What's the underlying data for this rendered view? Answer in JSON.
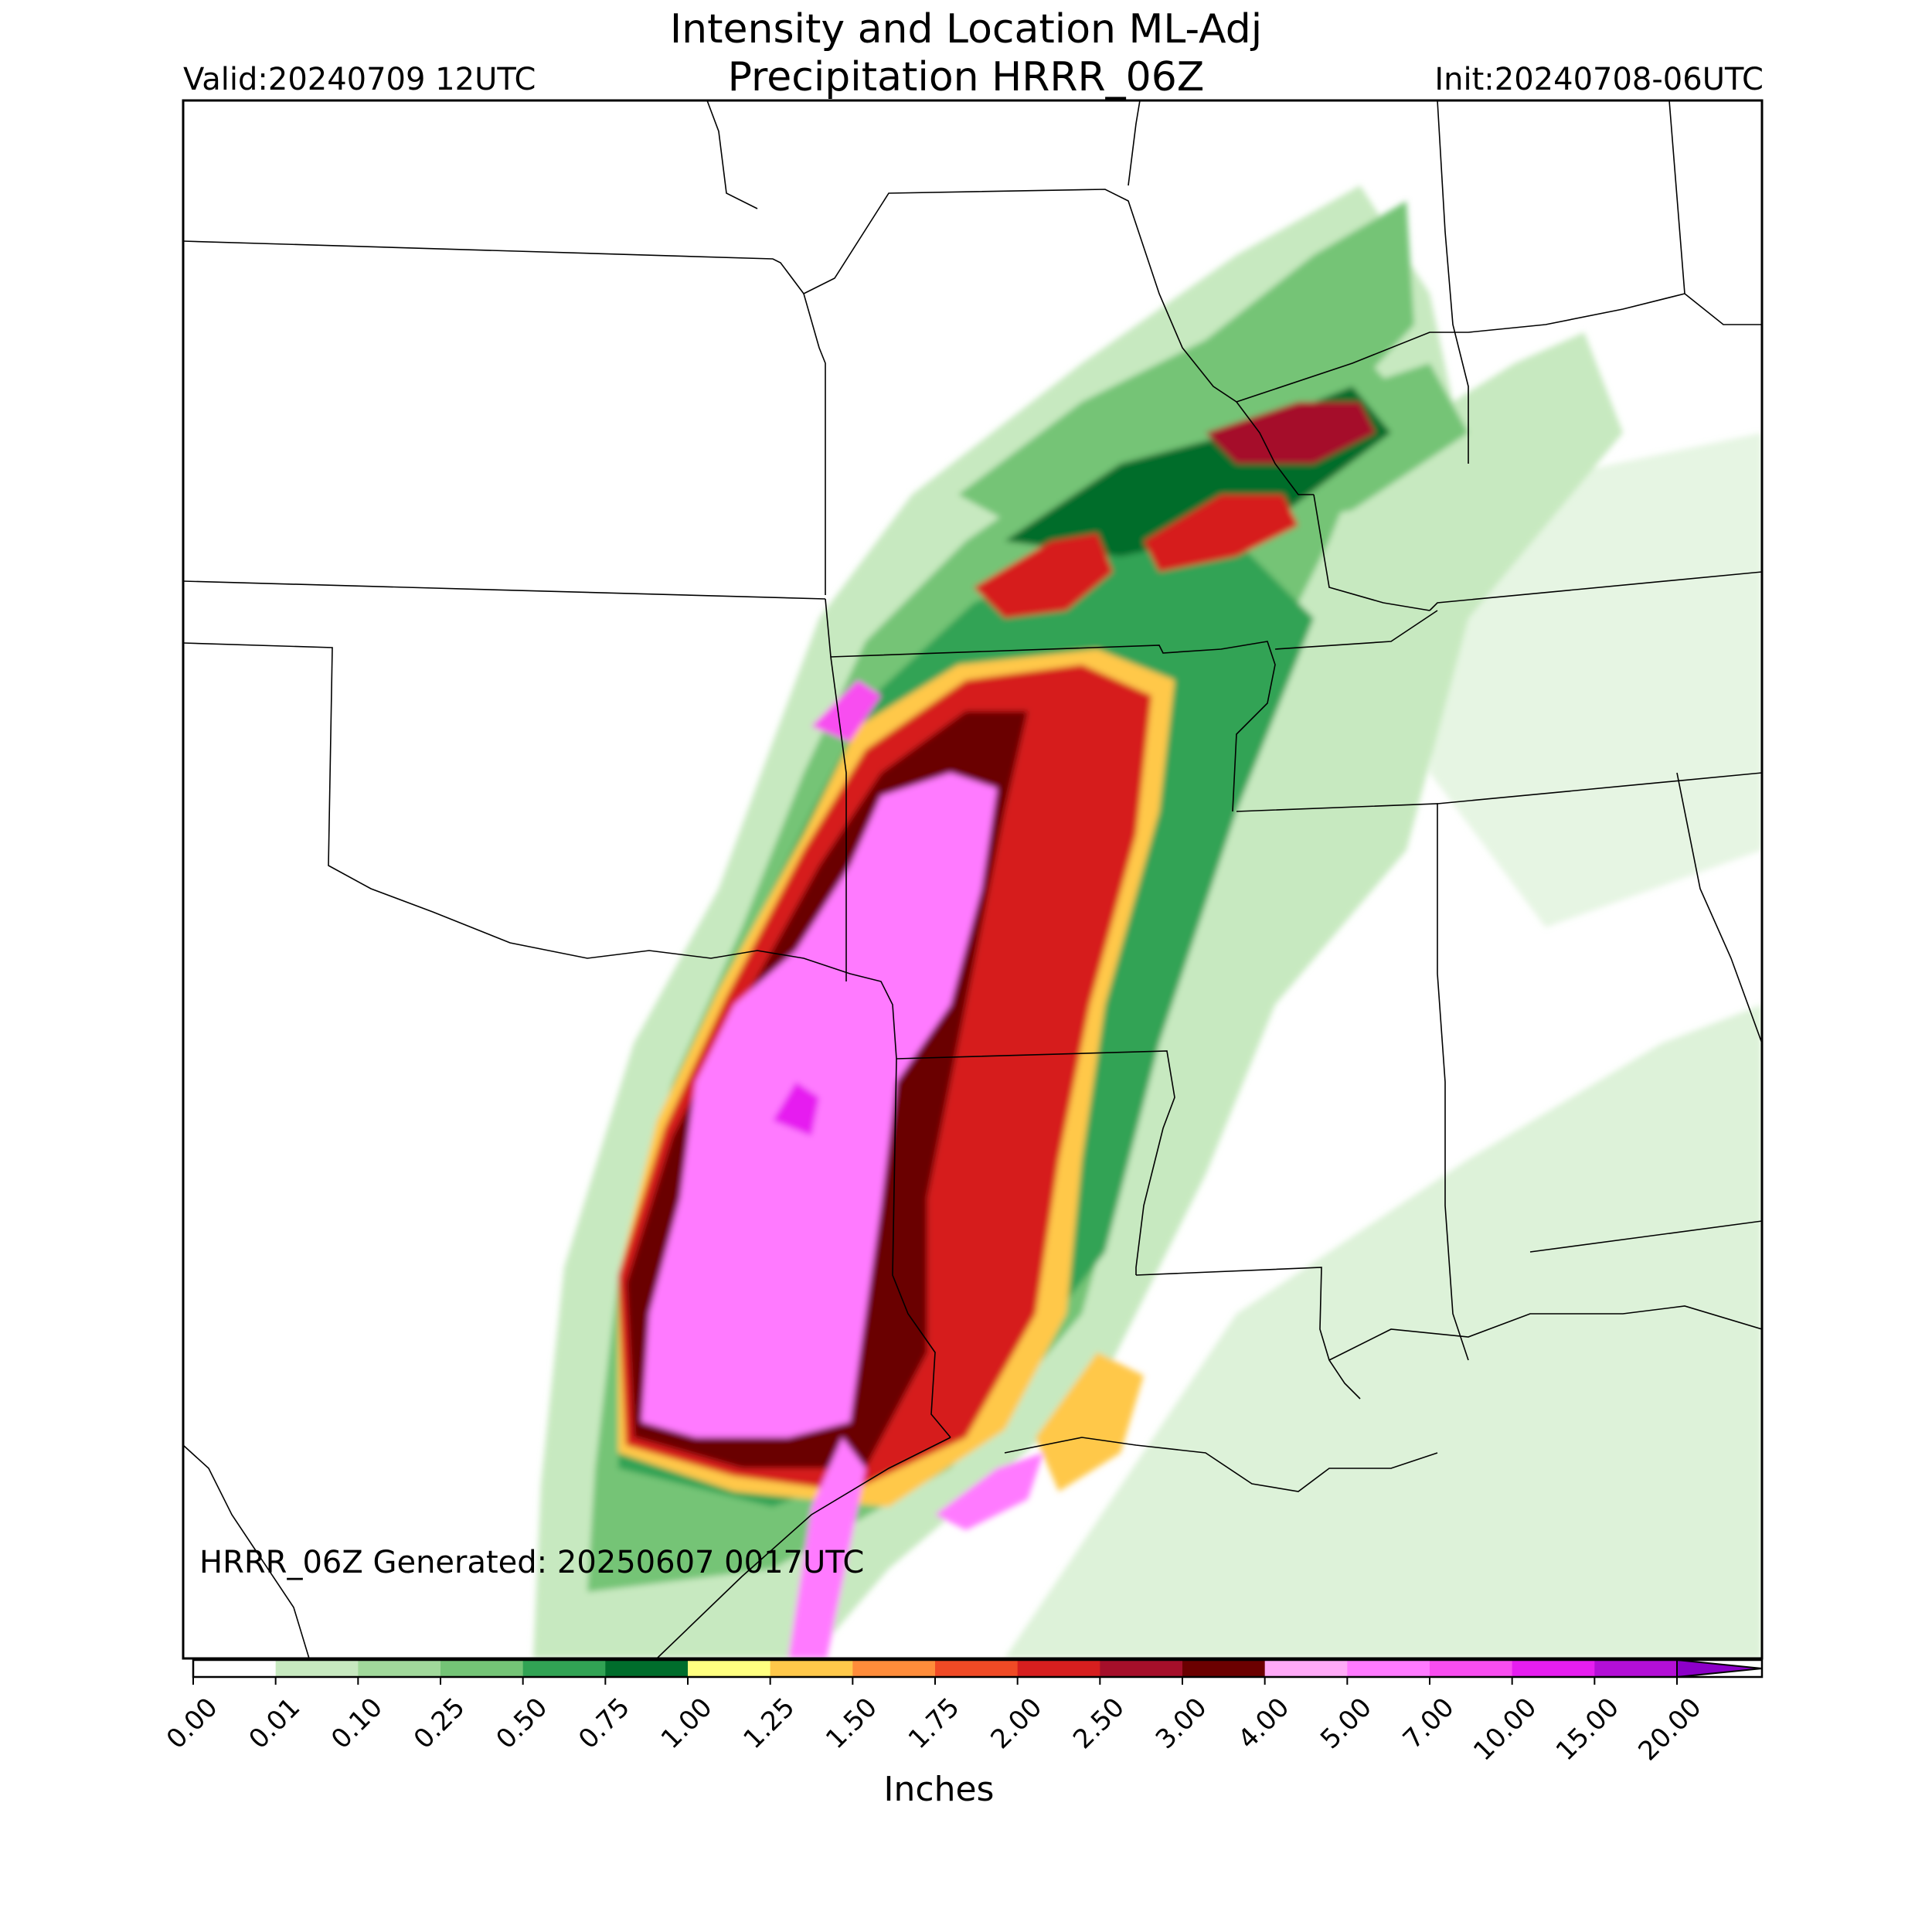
{
  "title": {
    "line1": "Intensity and Location ML-Adj",
    "line2": "Precipitation HRRR_06Z"
  },
  "valid_text": "Valid:20240709 12UTC",
  "init_text": "Init:20240708-06UTC",
  "generated_text": "HRRR_06Z Generated: 20250607 0017UTC",
  "colorbar": {
    "units": "Inches",
    "extend": "max",
    "ticks": [
      "0.00",
      "0.01",
      "0.10",
      "0.25",
      "0.50",
      "0.75",
      "1.00",
      "1.25",
      "1.50",
      "1.75",
      "2.00",
      "2.50",
      "3.00",
      "4.00",
      "5.00",
      "7.00",
      "10.00",
      "15.00",
      "20.00"
    ],
    "colors": [
      "#ffffff",
      "#c7e9c0",
      "#a1d99b",
      "#74c476",
      "#31a354",
      "#006d2c",
      "#ffff80",
      "#ffc84a",
      "#ff8c3a",
      "#f04a25",
      "#d61f1f",
      "#a50f2a",
      "#6b0000",
      "#ffaaf7",
      "#ff7aff",
      "#f84df0",
      "#e61ef0",
      "#b30fd6",
      "#8c00c8"
    ]
  },
  "map": {
    "region": "South-central United States",
    "basemap_colors": {
      "land": "#ffffff",
      "boundary": "#000000"
    }
  }
}
